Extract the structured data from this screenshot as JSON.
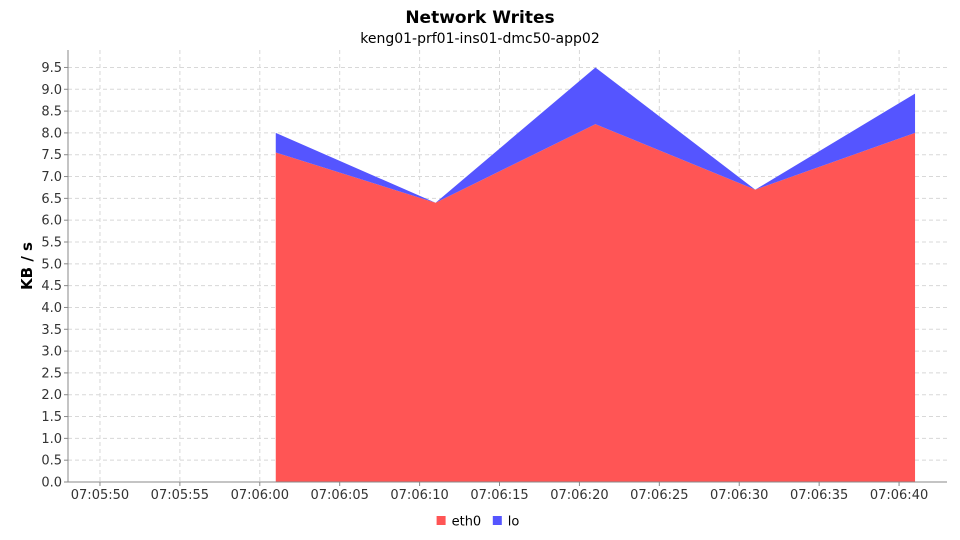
{
  "chart_data": {
    "type": "area",
    "stacked": true,
    "title": "Network Writes",
    "subtitle": "keng01-prf01-ins01-dmc50-app02",
    "xlabel": "",
    "ylabel": "KB / s",
    "xlim": [
      "07:05:48",
      "07:06:43"
    ],
    "ylim": [
      0,
      9.9
    ],
    "x_ticks": [
      "07:05:50",
      "07:05:55",
      "07:06:00",
      "07:06:05",
      "07:06:10",
      "07:06:15",
      "07:06:20",
      "07:06:25",
      "07:06:30",
      "07:06:35",
      "07:06:40"
    ],
    "y_ticks": [
      "0.0",
      "0.5",
      "1.0",
      "1.5",
      "2.0",
      "2.5",
      "3.0",
      "3.5",
      "4.0",
      "4.5",
      "5.0",
      "5.5",
      "6.0",
      "6.5",
      "7.0",
      "7.5",
      "8.0",
      "8.5",
      "9.0",
      "9.5"
    ],
    "grid": true,
    "legend_position": "bottom",
    "x": [
      "07:06:01",
      "07:06:11",
      "07:06:21",
      "07:06:31",
      "07:06:41"
    ],
    "series": [
      {
        "name": "eth0",
        "color": "#ff5555",
        "values": [
          7.55,
          6.4,
          8.2,
          6.7,
          8.0
        ]
      },
      {
        "name": "lo",
        "color": "#5555ff",
        "values": [
          0.45,
          0.0,
          1.3,
          0.0,
          0.9
        ]
      }
    ]
  }
}
